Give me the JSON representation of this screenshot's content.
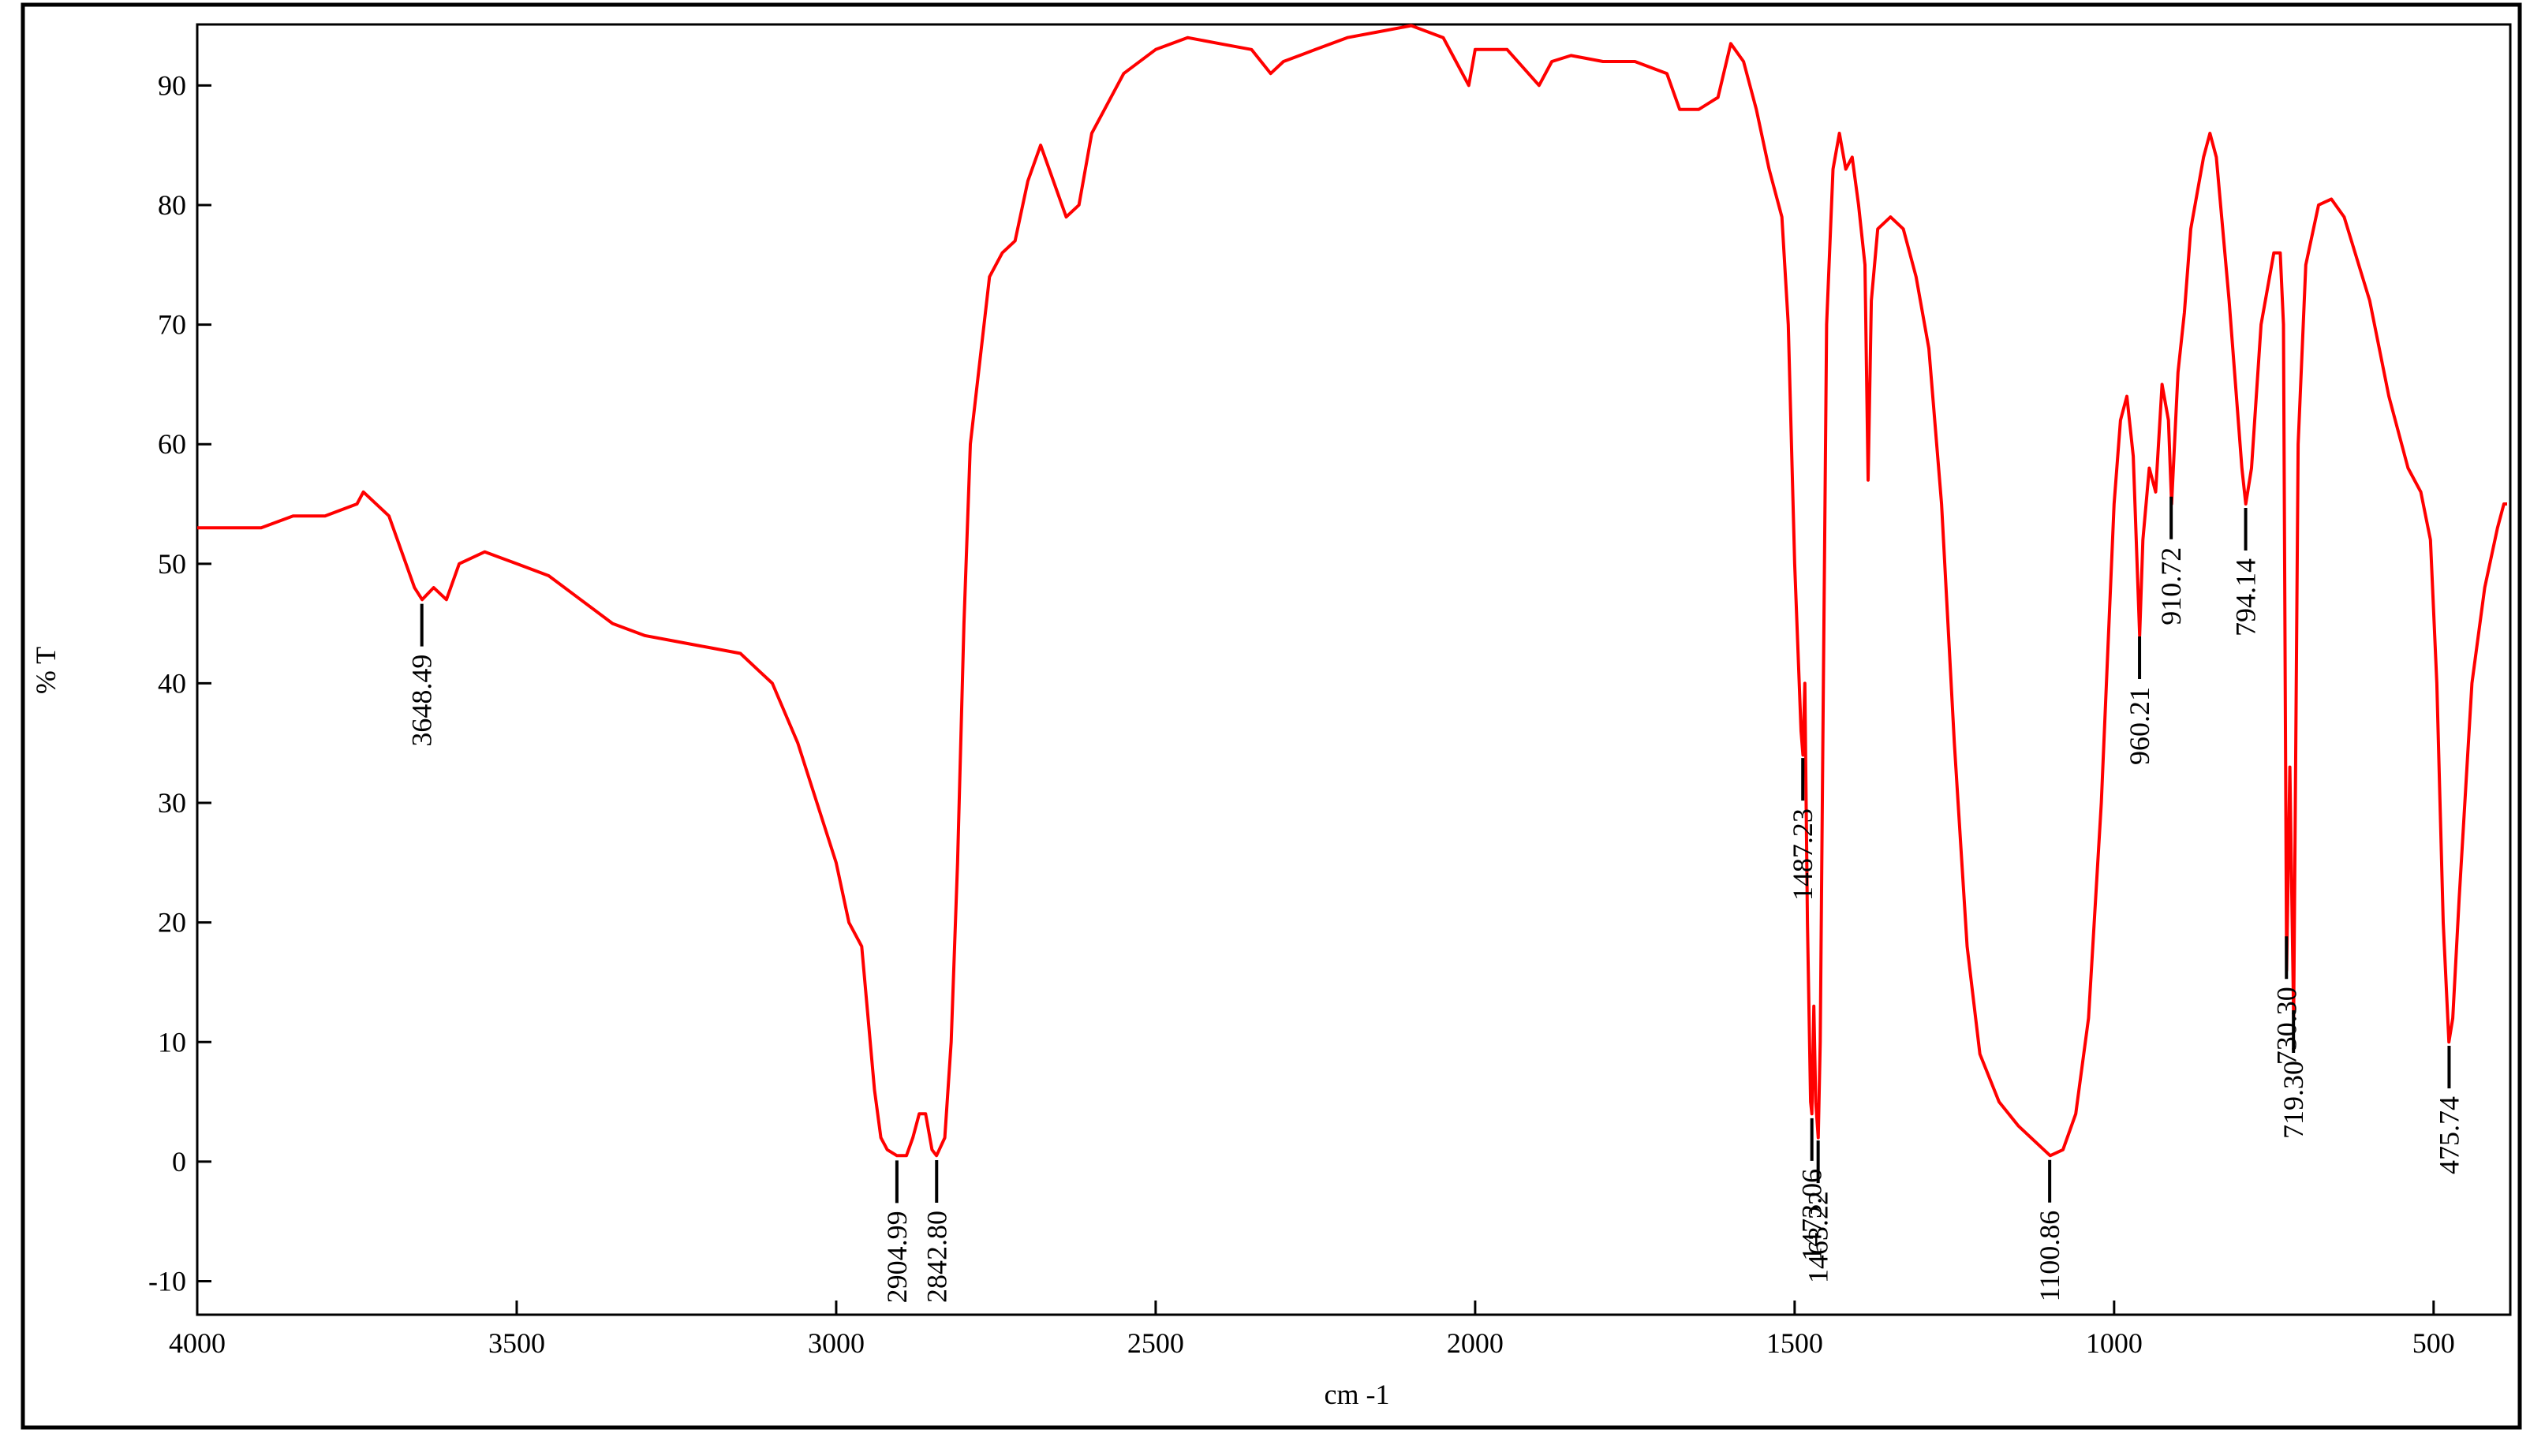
{
  "chart_data": {
    "type": "line",
    "x_label": "cm -1",
    "y_label": "% T",
    "color": "#ff0000",
    "xlim": [
      4000,
      380
    ],
    "ylim": [
      -12.8,
      95.1
    ],
    "xticks": [
      4000,
      3500,
      3000,
      2500,
      2000,
      1500,
      1000,
      500
    ],
    "yticks": [
      -10,
      0,
      10,
      20,
      30,
      40,
      50,
      60,
      70,
      80,
      90
    ],
    "x": [
      4000,
      3900,
      3850,
      3800,
      3750,
      3740,
      3700,
      3680,
      3660,
      3648,
      3630,
      3610,
      3590,
      3550,
      3500,
      3450,
      3400,
      3350,
      3300,
      3250,
      3200,
      3150,
      3120,
      3100,
      3060,
      3030,
      3000,
      2980,
      2960,
      2950,
      2940,
      2930,
      2920,
      2905,
      2890,
      2880,
      2870,
      2860,
      2850,
      2843,
      2830,
      2820,
      2810,
      2800,
      2790,
      2760,
      2740,
      2720,
      2700,
      2680,
      2660,
      2640,
      2620,
      2600,
      2550,
      2500,
      2450,
      2400,
      2350,
      2320,
      2300,
      2250,
      2200,
      2150,
      2100,
      2050,
      2030,
      2010,
      2000,
      1950,
      1900,
      1880,
      1850,
      1800,
      1750,
      1700,
      1680,
      1650,
      1620,
      1600,
      1580,
      1560,
      1540,
      1520,
      1510,
      1500,
      1490,
      1487,
      1484,
      1480,
      1475,
      1473,
      1470,
      1467,
      1463,
      1460,
      1455,
      1450,
      1440,
      1430,
      1420,
      1410,
      1400,
      1390,
      1385,
      1380,
      1370,
      1350,
      1330,
      1310,
      1290,
      1270,
      1250,
      1230,
      1210,
      1180,
      1150,
      1120,
      1100,
      1080,
      1060,
      1040,
      1020,
      1000,
      990,
      980,
      970,
      960,
      955,
      945,
      935,
      925,
      915,
      910,
      900,
      890,
      880,
      860,
      850,
      840,
      820,
      800,
      794,
      785,
      770,
      750,
      740,
      735,
      730,
      725,
      719,
      712,
      700,
      680,
      660,
      640,
      600,
      570,
      540,
      520,
      505,
      495,
      485,
      476,
      470,
      460,
      440,
      420,
      400,
      390,
      385
    ],
    "values": [
      53,
      53,
      54,
      54,
      55,
      56,
      54,
      51,
      48,
      47,
      48,
      47,
      50,
      51,
      50,
      49,
      47,
      45,
      44,
      43.5,
      43,
      42.5,
      41,
      40,
      35,
      30,
      25,
      20,
      18,
      12,
      6,
      2,
      1,
      0.5,
      0.5,
      2,
      4,
      4,
      1,
      0.5,
      2,
      10,
      25,
      45,
      60,
      74,
      76,
      77,
      82,
      85,
      82,
      79,
      80,
      86,
      91,
      93,
      94,
      93.5,
      93,
      91,
      92,
      93,
      94,
      94.5,
      95,
      94,
      92,
      90,
      93,
      93,
      90,
      92,
      92.5,
      92,
      92,
      91,
      88,
      88,
      89,
      93.5,
      92,
      88,
      83,
      79,
      70,
      50,
      36,
      34,
      40,
      20,
      5,
      4,
      13,
      5,
      2,
      10,
      40,
      70,
      83,
      86,
      83,
      84,
      80,
      75,
      57,
      72,
      78,
      79,
      78,
      74,
      68,
      55,
      35,
      18,
      9,
      5,
      3,
      1.5,
      0.5,
      1,
      4,
      12,
      30,
      55,
      62,
      64,
      59,
      44,
      52,
      58,
      56,
      65,
      62,
      55,
      66,
      71,
      78,
      84,
      86,
      84,
      72,
      58,
      55,
      58,
      70,
      76,
      76,
      70,
      16,
      33,
      12,
      60,
      75,
      80,
      80.5,
      79,
      72,
      64,
      58,
      56,
      52,
      40,
      20,
      10,
      12,
      22,
      40,
      48,
      53,
      55,
      55
    ],
    "peak_labels": [
      3648.49,
      2904.99,
      {
        "value": 2842.8,
        "label": "2842.80"
      },
      1487.23,
      1473.06,
      1463.22,
      1100.86,
      960.21,
      910.72,
      794.14,
      {
        "value": 730.3,
        "label": "730.30"
      },
      {
        "value": 719.3,
        "label": "719.30"
      },
      475.74
    ]
  }
}
